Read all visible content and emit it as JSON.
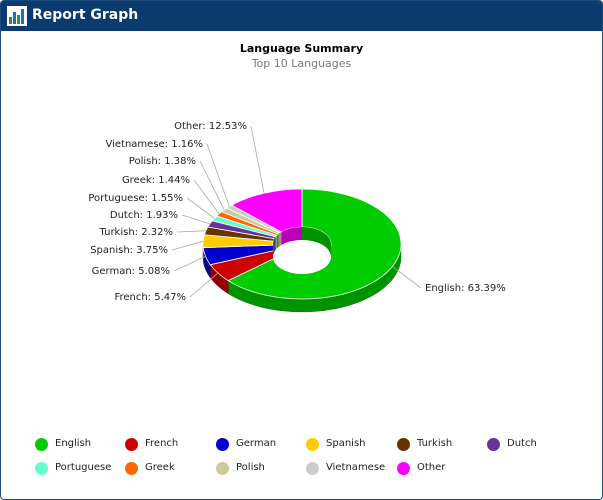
{
  "window": {
    "title": "Report Graph",
    "icon": "bar-chart-icon"
  },
  "chart_data": {
    "type": "pie",
    "style": "donut-3d",
    "title": "Language Summary",
    "subtitle": "Top 10 Languages",
    "legend_position": "bottom",
    "slices": [
      {
        "name": "English",
        "value": 63.39,
        "label": "English: 63.39%",
        "color": "#00cc00"
      },
      {
        "name": "French",
        "value": 5.47,
        "label": "French: 5.47%",
        "color": "#cc0000"
      },
      {
        "name": "German",
        "value": 5.08,
        "label": "German: 5.08%",
        "color": "#0000cc"
      },
      {
        "name": "Spanish",
        "value": 3.75,
        "label": "Spanish: 3.75%",
        "color": "#ffcc00"
      },
      {
        "name": "Turkish",
        "value": 2.32,
        "label": "Turkish: 2.32%",
        "color": "#663300"
      },
      {
        "name": "Dutch",
        "value": 1.93,
        "label": "Dutch: 1.93%",
        "color": "#663399"
      },
      {
        "name": "Portuguese",
        "value": 1.55,
        "label": "Portuguese: 1.55%",
        "color": "#66ffcc"
      },
      {
        "name": "Greek",
        "value": 1.44,
        "label": "Greek: 1.44%",
        "color": "#ff6600"
      },
      {
        "name": "Polish",
        "value": 1.38,
        "label": "Polish: 1.38%",
        "color": "#cccc99"
      },
      {
        "name": "Vietnamese",
        "value": 1.16,
        "label": "Vietnamese: 1.16%",
        "color": "#cccccc"
      },
      {
        "name": "Other",
        "value": 12.53,
        "label": "Other: 12.53%",
        "color": "#ff00ff"
      }
    ]
  }
}
